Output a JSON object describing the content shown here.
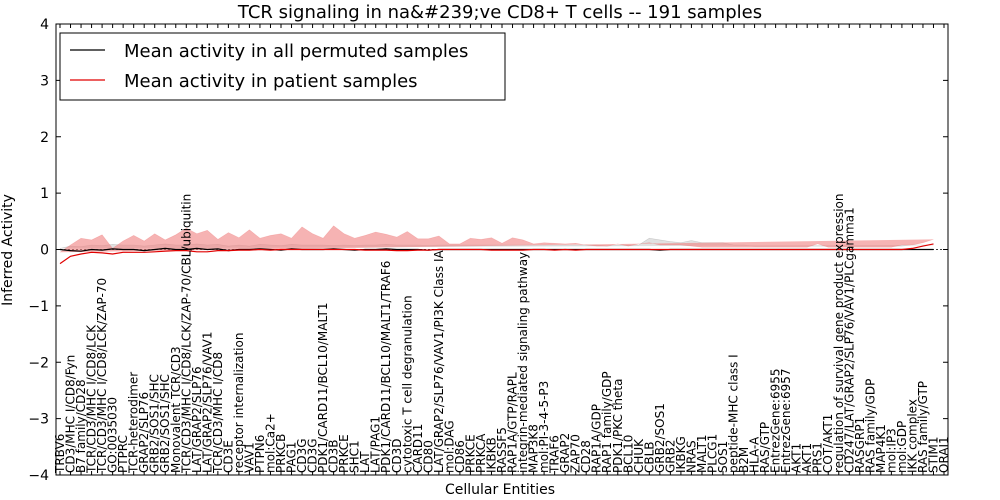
{
  "chart_data": {
    "type": "line",
    "title": "TCR signaling in na&#239;ve CD8+ T cells -- 191 samples",
    "xlabel": "Cellular Entities",
    "ylabel": "Inferred Activity",
    "ylim": [
      -4,
      4
    ],
    "yticks": [
      "4",
      "3",
      "2",
      "1",
      "0",
      "−1",
      "−2",
      "−3",
      "−4"
    ],
    "legend_position": "top-left",
    "categories": [
      "TRBV6",
      "CD3/MHC I/CD8/Fyn",
      "B7 family/CD28",
      "TCR/CD3/MHC I/CD8/LCK",
      "TCR/CD3/MHC I/CD8/LCK/ZAP-70",
      "GO:0035030",
      "PTPRC",
      "TCR-heterodimer",
      "GRAP2/SLP76",
      "GRB2/SOS1/SHC",
      "GRB2/SOS1/SHC",
      "Monovalent TCR/CD3",
      "TCR/CD3/MHC I/CD8/LCK/ZAP-70/CBL/ubiquitin",
      "LAT/GRAP2/SLP76",
      "LAT/GRAP2/SLP76/VAV1",
      "TCR/CD3/MHC I/CD8",
      "CD3E",
      "receptor internalization",
      "VAV1",
      "PTPN6",
      "mol:Ca2+",
      "PRKCB",
      "PAG1",
      "CD3G",
      "CD3G",
      "PDK1/CARD11/BCL10/MALT1",
      "CD3B",
      "PRKCE",
      "SHC1",
      "LAT",
      "LAT/PAG1",
      "PDK1/CARD11/BCL10/MALT1/TRAF6",
      "CD3D",
      "cytotoxic T cell degranulation",
      "CARD11",
      "CD80",
      "LAT/GRAP2/SLP76/VAV1/PI3K Class IA",
      "mol:DAG",
      "CD86",
      "PRKCE",
      "PRKCA",
      "IKBKB",
      "RASSF5",
      "RAP1A/GTP/RAPL",
      "integrin-mediated signaling pathway",
      "MAP3K8",
      "mol:PI-3-4-5-P3",
      "TRAF6",
      "GRAP2",
      "ZAP70",
      "CD28",
      "RAP1A/GDP",
      "RAP1 family/GDP",
      "PDK1/PKC theta",
      "BCL10",
      "CHUK",
      "CBLB",
      "GRB2/SOS1",
      "GRB2",
      "IKBKG",
      "NRAS",
      "MALT1",
      "PLCG1",
      "SOS1",
      "peptide-MHC class I",
      "B2M",
      "HLA-A",
      "RAS/GTP",
      "EntrezGene:6955",
      "EntrezGene:6957",
      "AKT1",
      "AKT1",
      "PRS1",
      "COT/AKT1",
      "regulation of survival gene product expression",
      "CD247/LAT/GRAP2/SLP76/VAV1/PLCgamma1",
      "RASGRP1",
      "RAS family/GDP",
      "MAP4K1",
      "mol:IP3",
      "mol:GDP",
      "IKK complex",
      "RAS family/GTP",
      "STIM1",
      "ORAI1"
    ],
    "series": [
      {
        "name": "Mean activity in all permuted samples",
        "color": "#000000",
        "band_color": "#c8c8c8",
        "mean": [
          0.0,
          -0.02,
          -0.03,
          0.0,
          -0.01,
          0.01,
          0.0,
          0.0,
          -0.02,
          0.0,
          0.02,
          0.0,
          0.0,
          0.02,
          0.0,
          0.01,
          -0.02,
          0.0,
          0.0,
          0.01,
          0.0,
          -0.01,
          0.01,
          0.0,
          0.0,
          0.0,
          0.01,
          0.0,
          -0.01,
          0.0,
          0.0,
          0.01,
          0.0,
          0.0,
          0.0,
          -0.01,
          0.0,
          0.0,
          0.0,
          0.0,
          0.0,
          0.0,
          0.0,
          0.0,
          0.0,
          0.0,
          0.0,
          0.0,
          0.0,
          0.0,
          0.0,
          0.0,
          0.0,
          0.0,
          0.0,
          0.0,
          0.0,
          -0.01,
          0.0,
          0.0,
          0.0,
          0.0,
          0.0,
          0.0,
          0.0,
          0.0,
          0.0,
          0.0,
          0.0,
          0.0,
          0.0,
          0.0,
          0.0,
          0.0,
          0.0,
          0.0,
          0.0,
          0.0,
          0.0,
          0.0,
          0.0,
          0.0,
          0.0,
          0.0
        ],
        "spread": [
          0.02,
          0.08,
          0.08,
          0.08,
          0.08,
          0.08,
          0.08,
          0.08,
          0.08,
          0.08,
          0.08,
          0.08,
          0.08,
          0.08,
          0.08,
          0.08,
          0.08,
          0.08,
          0.06,
          0.08,
          0.08,
          0.08,
          0.08,
          0.08,
          0.08,
          0.08,
          0.06,
          0.08,
          0.08,
          0.08,
          0.08,
          0.08,
          0.08,
          0.08,
          0.08,
          0.08,
          0.08,
          0.08,
          0.08,
          0.08,
          0.08,
          0.08,
          0.08,
          0.08,
          0.08,
          0.08,
          0.08,
          0.08,
          0.08,
          0.08,
          0.08,
          0.08,
          0.06,
          0.08,
          0.08,
          0.08,
          0.2,
          0.18,
          0.14,
          0.12,
          0.16,
          0.12,
          0.12,
          0.12,
          0.08,
          0.08,
          0.06,
          0.06,
          0.06,
          0.06,
          0.06,
          0.06,
          0.06,
          0.06,
          0.06,
          0.06,
          0.06,
          0.06,
          0.06,
          0.06,
          0.06,
          0.08,
          0.08,
          0.08
        ]
      },
      {
        "name": "Mean activity in patient samples",
        "color": "#e00000",
        "band_color": "#f08080",
        "mean": [
          -0.25,
          -0.12,
          -0.08,
          -0.05,
          -0.06,
          -0.08,
          -0.05,
          -0.05,
          -0.05,
          -0.04,
          -0.03,
          -0.02,
          -0.02,
          -0.04,
          -0.04,
          -0.02,
          -0.02,
          -0.01,
          -0.01,
          0.0,
          -0.01,
          0.0,
          0.0,
          0.0,
          0.0,
          0.0,
          0.0,
          0.0,
          0.0,
          -0.01,
          -0.01,
          -0.01,
          -0.02,
          -0.02,
          -0.01,
          -0.01,
          0.0,
          0.0,
          0.0,
          0.0,
          0.0,
          -0.01,
          -0.01,
          -0.01,
          -0.01,
          0.0,
          0.0,
          -0.01,
          0.0,
          -0.01,
          0.0,
          0.0,
          0.0,
          0.0,
          0.0,
          0.0,
          0.0,
          0.0,
          0.0,
          0.0,
          0.0,
          0.0,
          0.0,
          0.0,
          0.0,
          0.0,
          0.0,
          0.0,
          0.0,
          0.0,
          0.0,
          0.0,
          0.0,
          0.0,
          0.0,
          0.0,
          0.0,
          0.0,
          0.0,
          0.0,
          0.0,
          0.02,
          0.06,
          0.1
        ],
        "spread": [
          0.2,
          0.2,
          0.28,
          0.22,
          0.32,
          0.1,
          0.2,
          0.3,
          0.2,
          0.32,
          0.2,
          0.28,
          0.4,
          0.32,
          0.38,
          0.2,
          0.32,
          0.22,
          0.36,
          0.2,
          0.26,
          0.28,
          0.2,
          0.4,
          0.28,
          0.2,
          0.42,
          0.28,
          0.2,
          0.26,
          0.32,
          0.28,
          0.24,
          0.34,
          0.2,
          0.2,
          0.24,
          0.1,
          0.1,
          0.2,
          0.18,
          0.22,
          0.12,
          0.22,
          0.18,
          0.1,
          0.12,
          0.12,
          0.1,
          0.12,
          0.08,
          0.06,
          0.06,
          0.1,
          0.06,
          0.1,
          0.12,
          0.08,
          0.08,
          0.08,
          0.06,
          0.04,
          0.04,
          0.04,
          0.04,
          0.04,
          0.04,
          0.04,
          0.04,
          0.04,
          0.04,
          0.04,
          0.1,
          0.04,
          0.04,
          0.04,
          0.04,
          0.04,
          0.04,
          0.04,
          0.08,
          0.06,
          0.06,
          0.08
        ]
      }
    ]
  }
}
